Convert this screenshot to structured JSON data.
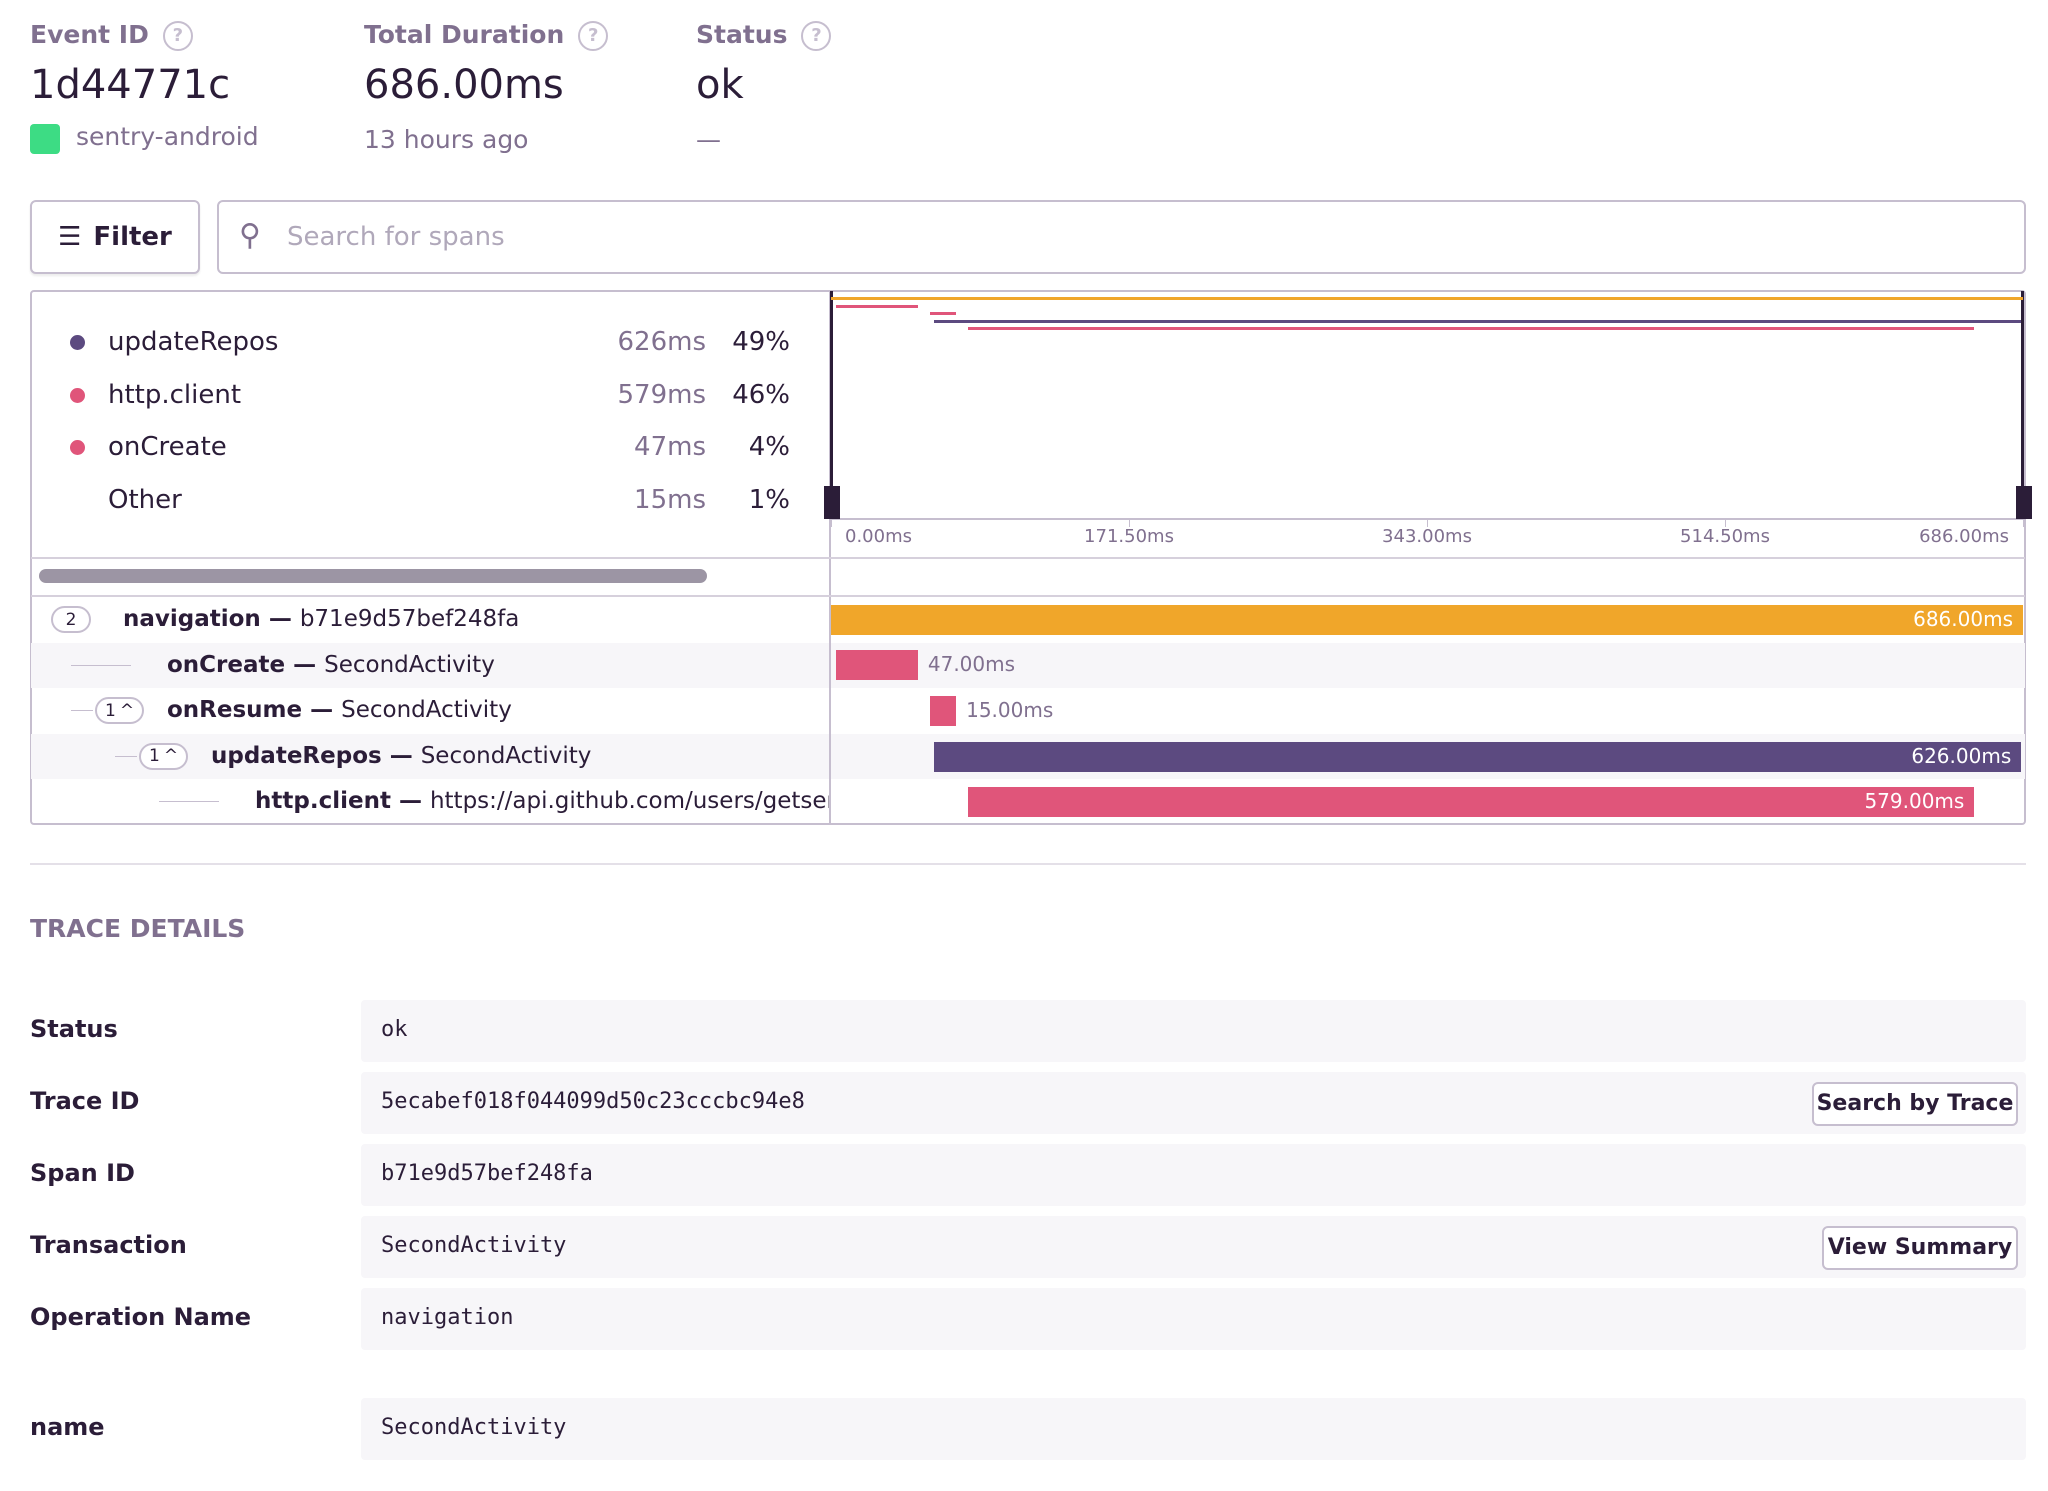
{
  "header": {
    "event_id_label": "Event ID",
    "event_id": "1d44771c",
    "platform": "sentry-android",
    "duration_label": "Total Duration",
    "duration": "686.00ms",
    "age": "13 hours ago",
    "status_label": "Status",
    "status": "ok",
    "status_sub": "—"
  },
  "toolbar": {
    "filter": "Filter",
    "search_placeholder": "Search for spans"
  },
  "ops_breakdown": [
    {
      "op": "updateRepos",
      "duration": "626ms",
      "percent": "49%",
      "color": "#5c4a80"
    },
    {
      "op": "http.client",
      "duration": "579ms",
      "percent": "46%",
      "color": "#e0557a"
    },
    {
      "op": "onCreate",
      "duration": "47ms",
      "percent": "4%",
      "color": "#e0557a"
    },
    {
      "op": "Other",
      "duration": "15ms",
      "percent": "1%"
    }
  ],
  "chart_data": {
    "type": "waterfall",
    "xlim": [
      0,
      686
    ],
    "xticks": [
      {
        "value": 0,
        "label": "0.00ms"
      },
      {
        "value": 171.5,
        "label": "171.50ms"
      },
      {
        "value": 343,
        "label": "343.00ms"
      },
      {
        "value": 514.5,
        "label": "514.50ms"
      },
      {
        "value": 686,
        "label": "686.00ms"
      }
    ],
    "spans": [
      {
        "op": "navigation",
        "description": "b71e9d57bef248fa",
        "children": 2,
        "start": 0,
        "duration": 686,
        "duration_label": "686.00ms",
        "color": "#f0a62a"
      },
      {
        "op": "onCreate",
        "description": "SecondActivity",
        "start": 3,
        "duration": 47,
        "duration_label": "47.00ms",
        "color": "#e0557a"
      },
      {
        "op": "onResume",
        "description": "SecondActivity",
        "children": 1,
        "start": 57,
        "duration": 15,
        "duration_label": "15.00ms",
        "color": "#e0557a"
      },
      {
        "op": "updateRepos",
        "description": "SecondActivity",
        "children": 1,
        "start": 59,
        "duration": 626,
        "duration_label": "626.00ms",
        "color": "#5c4a80"
      },
      {
        "op": "http.client",
        "description": "https://api.github.com/users/getsentry/repos",
        "start": 79,
        "duration": 579,
        "duration_label": "579.00ms",
        "color": "#e0557a"
      }
    ]
  },
  "trace_details": {
    "title": "TRACE DETAILS",
    "rows": [
      [
        "Status",
        "ok"
      ],
      [
        "Trace ID",
        "5ecabef018f044099d50c23cccbc94e8"
      ],
      [
        "Span ID",
        "b71e9d57bef248fa"
      ],
      [
        "Transaction",
        "SecondActivity"
      ],
      [
        "Operation Name",
        "navigation"
      ],
      [
        "name",
        "SecondActivity"
      ]
    ],
    "search_button": "Search by Trace",
    "summary_button": "View Summary"
  }
}
